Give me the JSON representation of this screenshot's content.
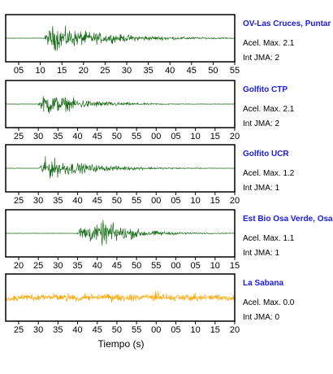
{
  "chart_data": {
    "type": "line",
    "xlabel": "Tiempo (s)",
    "panels": [
      {
        "station": "OV-Las Cruces, Puntar",
        "acel_label": "Acel. Max. 2.1",
        "int_label": "Int JMA: 2",
        "color": "#1a6e1a",
        "tick_labels": [
          "05",
          "10",
          "15",
          "20",
          "25",
          "30",
          "35",
          "40",
          "45",
          "50",
          "55"
        ],
        "onset_tick": 1.15,
        "peak_amp": 0.95,
        "coda": 2.6,
        "burst": null
      },
      {
        "station": "Golfito CTP",
        "acel_label": "Acel. Max. 2.1",
        "int_label": "Int JMA: 2",
        "color": "#1a6e1a",
        "tick_labels": [
          "25",
          "30",
          "35",
          "40",
          "45",
          "50",
          "55",
          "00",
          "05",
          "10",
          "15",
          "20"
        ],
        "onset_tick": 1.0,
        "peak_amp": 0.9,
        "coda": 2.0,
        "burst": null
      },
      {
        "station": "Golfito UCR",
        "acel_label": "Acel. Max. 1.2",
        "int_label": "Int JMA: 1",
        "color": "#1a6e1a",
        "tick_labels": [
          "25",
          "30",
          "35",
          "40",
          "45",
          "50",
          "55",
          "00",
          "05",
          "10",
          "15",
          "20"
        ],
        "onset_tick": 1.0,
        "peak_amp": 0.85,
        "coda": 2.3,
        "burst": null
      },
      {
        "station": "Est Bio Osa Verde, Osa",
        "acel_label": "Acel. Max. 1.1",
        "int_label": "Int JMA: 1",
        "color": "#1a6e1a",
        "tick_labels": [
          "20",
          "25",
          "30",
          "35",
          "40",
          "45",
          "50",
          "55",
          "00",
          "05",
          "10",
          "15"
        ],
        "onset_tick": 2.9,
        "peak_amp": 0.8,
        "coda": 2.2,
        "burst": 4.5
      },
      {
        "station": "La Sabana",
        "acel_label": "Acel. Max. 0.0",
        "int_label": "Int JMA: 0",
        "color": "#ffa500",
        "tick_labels": [
          "25",
          "30",
          "35",
          "40",
          "45",
          "50",
          "55",
          "00",
          "05",
          "10",
          "15",
          "20"
        ],
        "onset_tick": null,
        "peak_amp": 0.55,
        "coda": null,
        "burst": null
      }
    ]
  }
}
